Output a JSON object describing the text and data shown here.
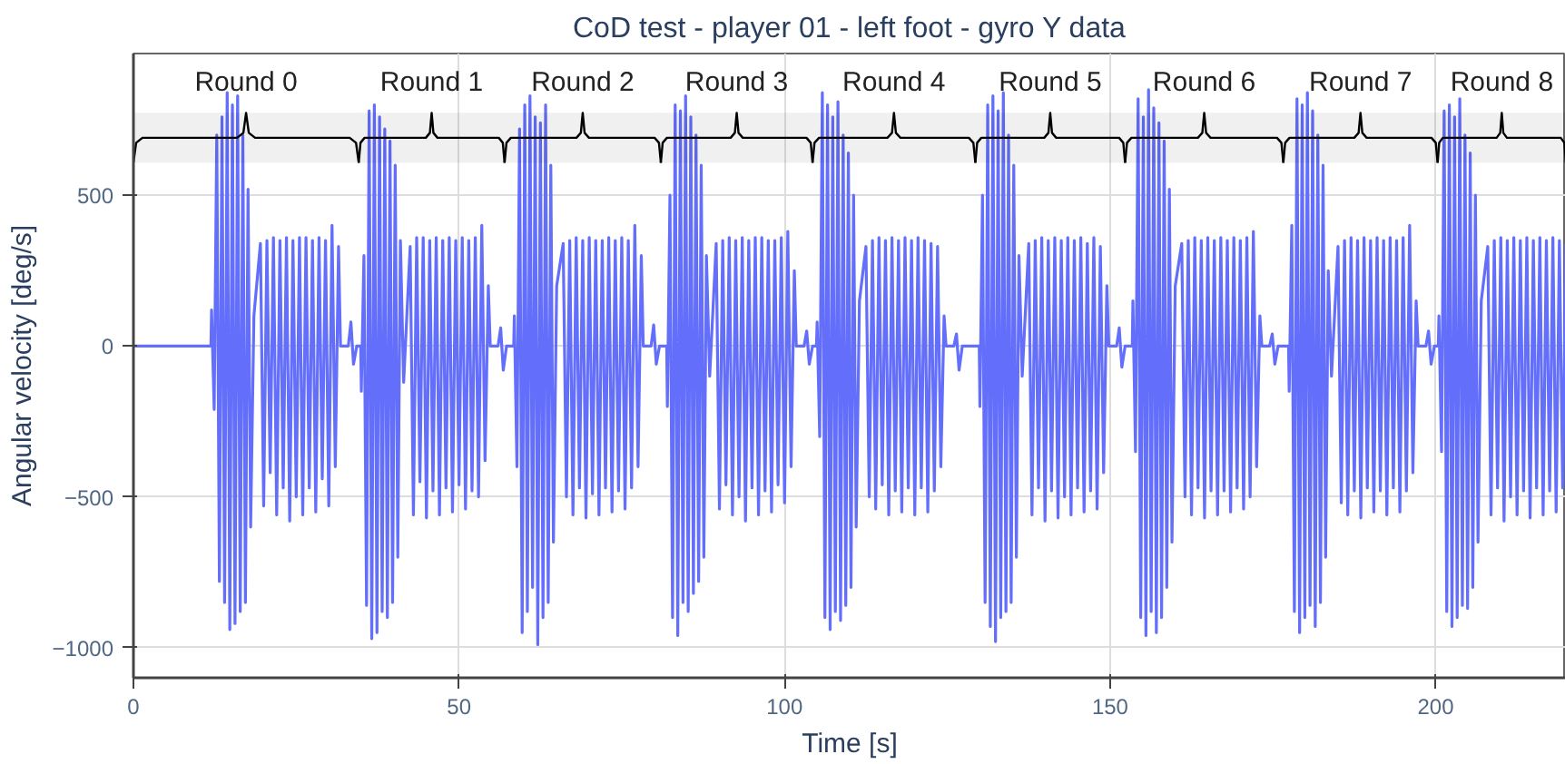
{
  "chart_data": {
    "type": "line",
    "title": "CoD test - player 01 - left foot - gyro Y data",
    "xlabel": "Time [s]",
    "ylabel": "Angular velocity [deg/s]",
    "xlim": [
      0,
      220
    ],
    "ylim": [
      -1100,
      970
    ],
    "xticks": [
      0,
      50,
      100,
      150,
      200
    ],
    "yticks": [
      -1000,
      -500,
      0,
      500
    ],
    "grid": true,
    "line_style": "solid",
    "bands": [
      {
        "axis": "x",
        "from": 0,
        "to": 34.6,
        "label": "Round 0",
        "color": "#000000"
      },
      {
        "axis": "x",
        "from": 34.6,
        "to": 57,
        "label": "Round 1",
        "color": "#000000"
      },
      {
        "axis": "x",
        "from": 57,
        "to": 81,
        "label": "Round 2",
        "color": "#000000"
      },
      {
        "axis": "x",
        "from": 81,
        "to": 104.3,
        "label": "Round 3",
        "color": "#000000"
      },
      {
        "axis": "x",
        "from": 104.3,
        "to": 129.3,
        "label": "Round 4",
        "color": "#000000"
      },
      {
        "axis": "x",
        "from": 129.3,
        "to": 152.3,
        "label": "Round 5",
        "color": "#000000"
      },
      {
        "axis": "x",
        "from": 152.3,
        "to": 176.6,
        "label": "Round 6",
        "color": "#000000"
      },
      {
        "axis": "x",
        "from": 176.6,
        "to": 200.3,
        "label": "Round 7",
        "color": "#000000"
      },
      {
        "axis": "x",
        "from": 200.3,
        "to": 220,
        "label": "Round 8",
        "color": "#000000"
      }
    ],
    "series": [
      {
        "color": "#636efa",
        "x": [
          0,
          11.9,
          12,
          12.4,
          12.8,
          13.2,
          13.6,
          14,
          14.4,
          14.8,
          15.2,
          15.6,
          16,
          16.4,
          16.8,
          17.2,
          17.6,
          18,
          18.5,
          19.5,
          20,
          20.5,
          21,
          21.5,
          22,
          22.5,
          23,
          23.5,
          24,
          24.5,
          25,
          25.5,
          26,
          26.5,
          27,
          27.5,
          28,
          28.5,
          29,
          29.5,
          30,
          30.5,
          31,
          31.5,
          31.8,
          33,
          33.4,
          33.8,
          34.3,
          34.9,
          35,
          35.4,
          35.8,
          36.2,
          36.6,
          37,
          37.4,
          37.8,
          38.2,
          38.6,
          39,
          39.4,
          39.8,
          40.2,
          40.6,
          41,
          41.5,
          42.5,
          43,
          43.5,
          44,
          44.5,
          45,
          45.5,
          46,
          46.5,
          47,
          47.5,
          48,
          48.5,
          49,
          49.5,
          50,
          50.5,
          51,
          51.5,
          52,
          52.5,
          53,
          53.5,
          54,
          54.5,
          54.8,
          56,
          56.4,
          56.8,
          57.3,
          58.4,
          58.5,
          58.9,
          59.3,
          59.7,
          60.1,
          60.5,
          60.9,
          61.3,
          61.7,
          62.1,
          62.5,
          62.9,
          63.3,
          63.7,
          64.1,
          64.5,
          65,
          66,
          66.5,
          67,
          67.5,
          68,
          68.5,
          69,
          69.5,
          70,
          70.5,
          71,
          71.5,
          72,
          72.5,
          73,
          73.5,
          74,
          74.5,
          75,
          75.5,
          76,
          76.5,
          77,
          77.5,
          78,
          78.3,
          79.5,
          79.9,
          80.3,
          80.8,
          81.9,
          82,
          82.4,
          82.8,
          83.2,
          83.6,
          84,
          84.4,
          84.8,
          85.2,
          85.6,
          86,
          86.4,
          86.8,
          87.2,
          87.6,
          88,
          88.5,
          89.5,
          90,
          90.5,
          91,
          91.5,
          92,
          92.5,
          93,
          93.5,
          94,
          94.5,
          95,
          95.5,
          96,
          96.5,
          97,
          97.5,
          98,
          98.5,
          99,
          99.5,
          100,
          100.5,
          101,
          101.5,
          101.8,
          103,
          103.4,
          103.8,
          104.3,
          104.9,
          105,
          105.4,
          105.8,
          106.2,
          106.6,
          107,
          107.4,
          107.8,
          108.2,
          108.6,
          109,
          109.4,
          109.8,
          110.2,
          110.6,
          111,
          111.5,
          112.5,
          113,
          113.5,
          114,
          114.5,
          115,
          115.5,
          116,
          116.5,
          117,
          117.5,
          118,
          118.5,
          119,
          119.5,
          120,
          120.5,
          121,
          121.5,
          122,
          122.5,
          123,
          123.5,
          124,
          124.5,
          124.8,
          126,
          126.4,
          126.8,
          127.3,
          129.9,
          130,
          130.4,
          130.8,
          131.2,
          131.6,
          132,
          132.4,
          132.8,
          133.2,
          133.6,
          134,
          134.4,
          134.8,
          135.2,
          135.6,
          136,
          136.5,
          137.5,
          138,
          138.5,
          139,
          139.5,
          140,
          140.5,
          141,
          141.5,
          142,
          142.5,
          143,
          143.5,
          144,
          144.5,
          145,
          145.5,
          146,
          146.5,
          147,
          147.5,
          148,
          148.5,
          149,
          149.5,
          149.8,
          151,
          151.4,
          151.8,
          152.3,
          153.4,
          153.5,
          153.9,
          154.3,
          154.7,
          155.1,
          155.5,
          155.9,
          156.3,
          156.7,
          157.1,
          157.5,
          157.9,
          158.3,
          158.7,
          159.1,
          159.5,
          160,
          161,
          161.5,
          162,
          162.5,
          163,
          163.5,
          164,
          164.5,
          165,
          165.5,
          166,
          166.5,
          167,
          167.5,
          168,
          168.5,
          169,
          169.5,
          170,
          170.5,
          171,
          171.5,
          172,
          172.5,
          173,
          173.3,
          174.5,
          174.9,
          175.3,
          175.8,
          177.4,
          177.5,
          177.9,
          178.3,
          178.7,
          179.1,
          179.5,
          179.9,
          180.3,
          180.7,
          181.1,
          181.5,
          181.9,
          182.3,
          182.7,
          183.1,
          183.5,
          184,
          185,
          185.5,
          186,
          186.5,
          187,
          187.5,
          188,
          188.5,
          189,
          189.5,
          190,
          190.5,
          191,
          191.5,
          192,
          192.5,
          193,
          193.5,
          194,
          194.5,
          195,
          195.5,
          196,
          196.5,
          197,
          197.3,
          198.5,
          198.9,
          199.3,
          199.8,
          200.4,
          200.5,
          200.9,
          201.3,
          201.7,
          202.1,
          202.5,
          202.9,
          203.3,
          203.7,
          204.1,
          204.5,
          204.9,
          205.3,
          205.7,
          206.1,
          206.5,
          207,
          208,
          208.5,
          209,
          209.5,
          210,
          210.5,
          211,
          211.5,
          212,
          212.5,
          213,
          213.5,
          214,
          214.5,
          215,
          215.5,
          216,
          216.5,
          217,
          217.5,
          218,
          218.5,
          219,
          219.5,
          220
        ],
        "values": [
          0,
          0,
          120,
          -210,
          700,
          -780,
          760,
          -850,
          840,
          -940,
          800,
          -920,
          830,
          -880,
          700,
          -850,
          520,
          -600,
          100,
          340,
          -530,
          350,
          -420,
          360,
          -560,
          350,
          -470,
          360,
          -580,
          350,
          -500,
          360,
          -560,
          360,
          -470,
          350,
          -550,
          360,
          -440,
          350,
          -530,
          400,
          -400,
          330,
          0,
          0,
          80,
          -60,
          0,
          0,
          -150,
          300,
          -860,
          780,
          -970,
          800,
          -950,
          760,
          -880,
          720,
          -900,
          680,
          -850,
          600,
          -700,
          350,
          -120,
          330,
          -560,
          360,
          -450,
          360,
          -570,
          350,
          -480,
          360,
          -560,
          350,
          -470,
          360,
          -550,
          350,
          -460,
          360,
          -540,
          350,
          -480,
          360,
          -500,
          400,
          -380,
          200,
          0,
          0,
          60,
          -80,
          0,
          0,
          100,
          -400,
          720,
          -950,
          800,
          -880,
          830,
          -800,
          760,
          -990,
          740,
          -900,
          800,
          -850,
          600,
          -650,
          200,
          340,
          -500,
          350,
          -560,
          360,
          -470,
          350,
          -570,
          360,
          -490,
          350,
          -560,
          350,
          -470,
          360,
          -550,
          350,
          -480,
          360,
          -540,
          350,
          -470,
          400,
          -400,
          300,
          0,
          0,
          70,
          -60,
          0,
          0,
          -200,
          500,
          -900,
          800,
          -960,
          780,
          -850,
          830,
          -880,
          760,
          -820,
          700,
          -780,
          600,
          -700,
          300,
          -100,
          340,
          -540,
          350,
          -460,
          360,
          -560,
          350,
          -500,
          360,
          -580,
          350,
          -470,
          360,
          -560,
          360,
          -480,
          350,
          -550,
          350,
          -460,
          360,
          -520,
          380,
          -400,
          250,
          0,
          0,
          50,
          -60,
          0,
          0,
          80,
          -300,
          840,
          -900,
          800,
          -940,
          760,
          -880,
          810,
          -910,
          700,
          -860,
          640,
          -800,
          500,
          -600,
          150,
          330,
          -500,
          350,
          -540,
          360,
          -460,
          350,
          -560,
          360,
          -480,
          350,
          -550,
          360,
          -470,
          350,
          -560,
          360,
          -470,
          350,
          -550,
          340,
          -480,
          330,
          -400,
          100,
          0,
          0,
          40,
          -80,
          0,
          0,
          -200,
          500,
          -850,
          800,
          -930,
          830,
          -980,
          780,
          -900,
          840,
          -880,
          700,
          -850,
          600,
          -700,
          300,
          -100,
          340,
          -560,
          350,
          -470,
          360,
          -580,
          350,
          -480,
          360,
          -570,
          350,
          -500,
          360,
          -560,
          350,
          -470,
          360,
          -550,
          340,
          -480,
          360,
          -540,
          330,
          -420,
          200,
          0,
          0,
          60,
          -70,
          0,
          0,
          150,
          -350,
          820,
          -900,
          760,
          -960,
          850,
          -880,
          790,
          -950,
          740,
          -900,
          680,
          -800,
          520,
          -650,
          200,
          340,
          -500,
          350,
          -560,
          360,
          -470,
          350,
          -570,
          360,
          -480,
          350,
          -560,
          360,
          -480,
          350,
          -550,
          360,
          -470,
          350,
          -540,
          360,
          -500,
          380,
          -400,
          100,
          0,
          0,
          40,
          -60,
          0,
          0,
          -150,
          400,
          -880,
          820,
          -950,
          800,
          -900,
          840,
          -860,
          780,
          -930,
          700,
          -850,
          600,
          -700,
          250,
          -100,
          330,
          -520,
          350,
          -560,
          360,
          -480,
          350,
          -570,
          360,
          -470,
          350,
          -550,
          360,
          -480,
          350,
          -560,
          360,
          -470,
          350,
          -550,
          360,
          -480,
          400,
          -420,
          150,
          0,
          0,
          50,
          -60,
          0,
          0,
          100,
          -350,
          780,
          -880,
          800,
          -930,
          760,
          -900,
          820,
          -860,
          700,
          -870,
          640,
          -800,
          500,
          -650,
          150,
          330,
          -560,
          350,
          -470,
          360,
          -580,
          350,
          -500,
          360,
          -560,
          350,
          -480,
          360,
          -570,
          350,
          -470,
          360,
          -560,
          350,
          -480,
          360,
          -550,
          350,
          -470,
          340
        ]
      }
    ]
  }
}
